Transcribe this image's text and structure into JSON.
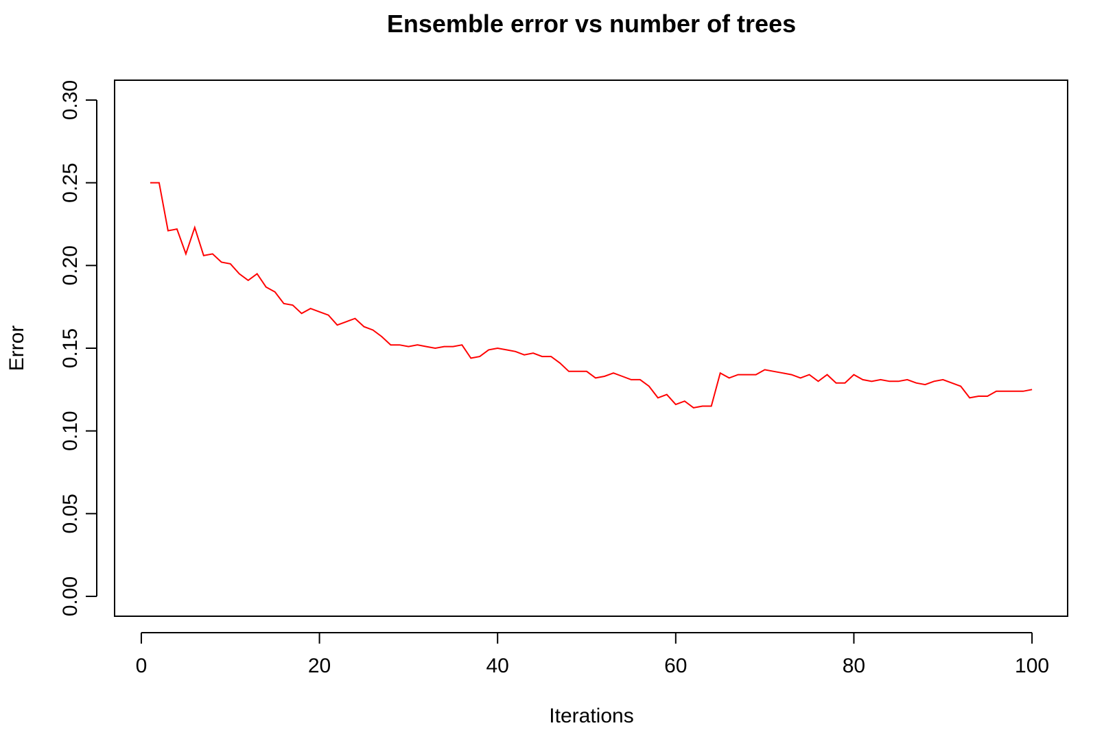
{
  "chart_data": {
    "type": "line",
    "title": "Ensemble error vs number of trees",
    "xlabel": "Iterations",
    "ylabel": "Error",
    "xlim": [
      -3,
      104
    ],
    "ylim": [
      -0.012,
      0.312
    ],
    "xticks": [
      0,
      20,
      40,
      60,
      80,
      100
    ],
    "xtick_labels": [
      "0",
      "20",
      "40",
      "60",
      "80",
      "100"
    ],
    "yticks": [
      0.0,
      0.05,
      0.1,
      0.15,
      0.2,
      0.25,
      0.3
    ],
    "ytick_labels": [
      "0.00",
      "0.05",
      "0.10",
      "0.15",
      "0.20",
      "0.25",
      "0.30"
    ],
    "grid": false,
    "legend": "none",
    "line_color": "#ff0000",
    "series": [
      {
        "x": [
          1,
          2,
          3,
          4,
          5,
          6,
          7,
          8,
          9,
          10,
          11,
          12,
          13,
          14,
          15,
          16,
          17,
          18,
          19,
          20,
          21,
          22,
          23,
          24,
          25,
          26,
          27,
          28,
          29,
          30,
          31,
          32,
          33,
          34,
          35,
          36,
          37,
          38,
          39,
          40,
          41,
          42,
          43,
          44,
          45,
          46,
          47,
          48,
          49,
          50,
          51,
          52,
          53,
          54,
          55,
          56,
          57,
          58,
          59,
          60,
          61,
          62,
          63,
          64,
          65,
          66,
          67,
          68,
          69,
          70,
          71,
          72,
          73,
          74,
          75,
          76,
          77,
          78,
          79,
          80,
          81,
          82,
          83,
          84,
          85,
          86,
          87,
          88,
          89,
          90,
          91,
          92,
          93,
          94,
          95,
          96,
          97,
          98,
          99,
          100
        ],
        "values": [
          0.25,
          0.25,
          0.221,
          0.222,
          0.207,
          0.223,
          0.206,
          0.207,
          0.202,
          0.201,
          0.195,
          0.191,
          0.195,
          0.187,
          0.184,
          0.177,
          0.176,
          0.171,
          0.174,
          0.172,
          0.17,
          0.164,
          0.166,
          0.168,
          0.163,
          0.161,
          0.157,
          0.152,
          0.152,
          0.151,
          0.152,
          0.151,
          0.15,
          0.151,
          0.151,
          0.152,
          0.144,
          0.145,
          0.149,
          0.15,
          0.149,
          0.148,
          0.146,
          0.147,
          0.145,
          0.145,
          0.141,
          0.136,
          0.136,
          0.136,
          0.132,
          0.133,
          0.135,
          0.133,
          0.131,
          0.131,
          0.127,
          0.12,
          0.122,
          0.116,
          0.118,
          0.114,
          0.115,
          0.115,
          0.135,
          0.132,
          0.134,
          0.134,
          0.134,
          0.137,
          0.136,
          0.135,
          0.134,
          0.132,
          0.134,
          0.13,
          0.134,
          0.129,
          0.129,
          0.134,
          0.131,
          0.13,
          0.131,
          0.13,
          0.13,
          0.131,
          0.129,
          0.128,
          0.13,
          0.131,
          0.129,
          0.127,
          0.12,
          0.121,
          0.121,
          0.124,
          0.124,
          0.124,
          0.124,
          0.125
        ]
      }
    ]
  }
}
